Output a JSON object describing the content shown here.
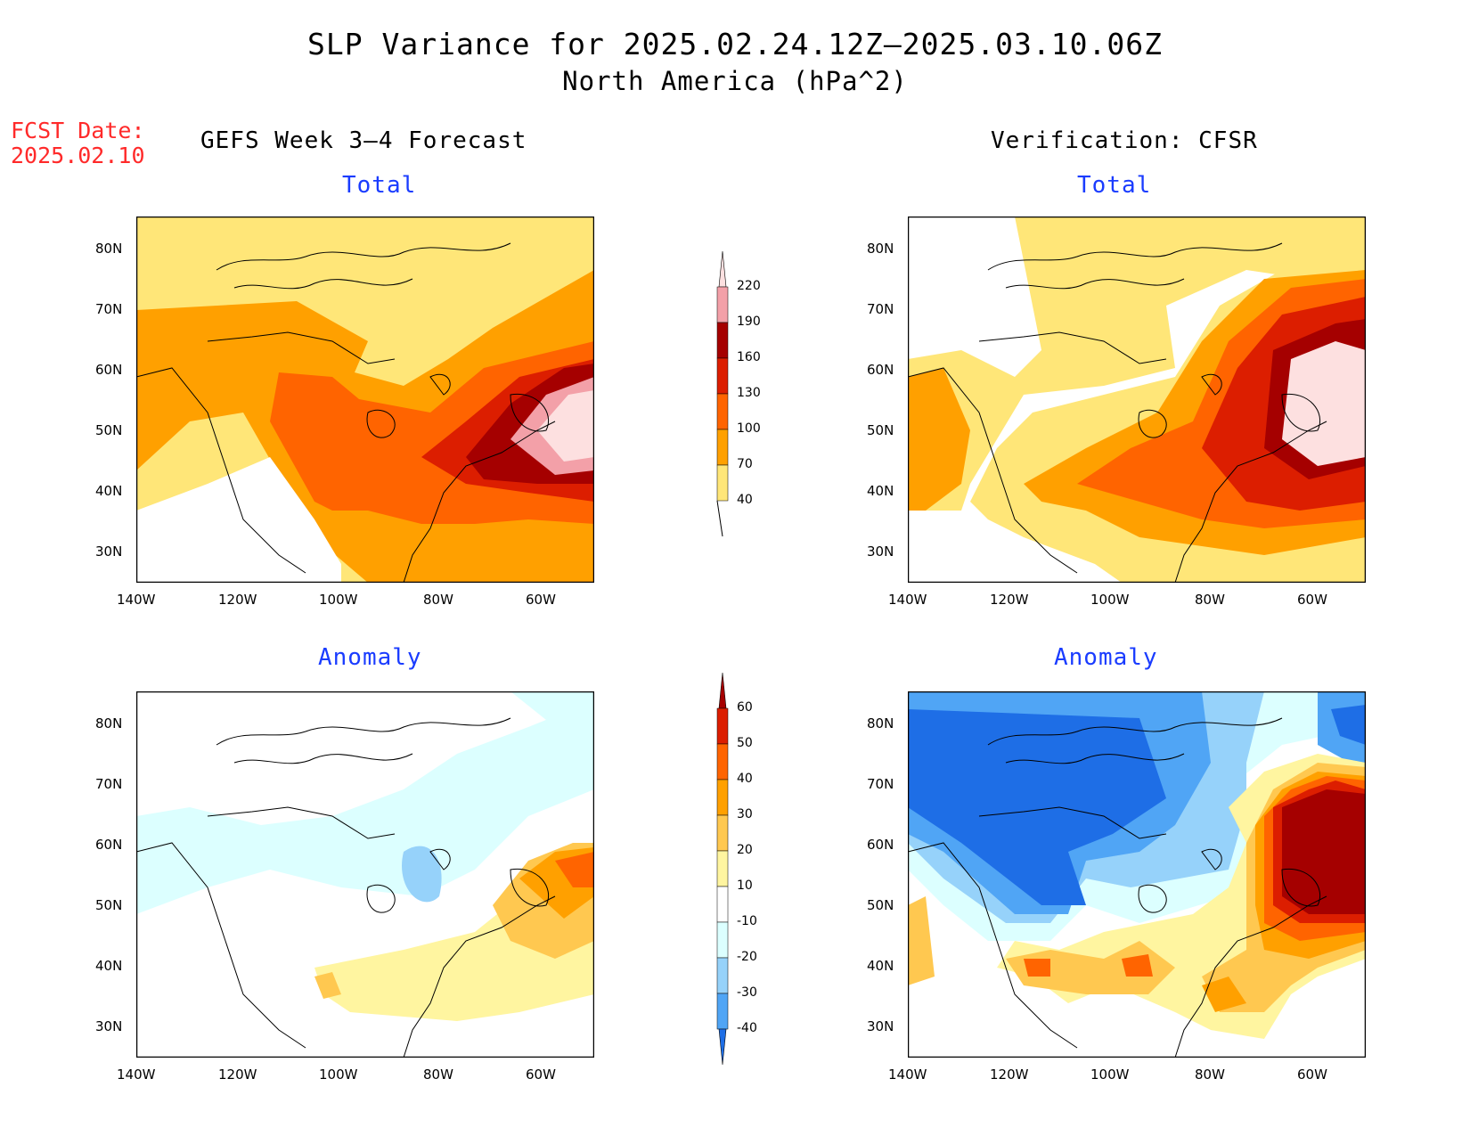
{
  "title": "SLP Variance for 2025.02.24.12Z—2025.03.10.06Z",
  "subtitle": "North America (hPa^2)",
  "fcst_label": "FCST Date:",
  "fcst_date": "2025.02.10",
  "columns": [
    {
      "title": "GEFS Week 3—4 Forecast"
    },
    {
      "title": "Verification: CFSR"
    }
  ],
  "panels": {
    "total_label": "Total",
    "anomaly_label": "Anomaly"
  },
  "axes": {
    "lon_ticks": [
      "140W",
      "120W",
      "100W",
      "80W",
      "60W"
    ],
    "lat_ticks": [
      "80N",
      "70N",
      "60N",
      "50N",
      "40N",
      "30N"
    ]
  },
  "colorbar_total": {
    "levels": [
      "220",
      "190",
      "160",
      "130",
      "100",
      "70",
      "40"
    ],
    "colors": [
      "#fde0e0",
      "#f3a0a8",
      "#a50000",
      "#dc1e00",
      "#ff6400",
      "#ffa000",
      "#ffe678"
    ]
  },
  "colorbar_anomaly": {
    "levels": [
      "60",
      "50",
      "40",
      "30",
      "20",
      "10",
      "-10",
      "-20",
      "-30",
      "-40"
    ],
    "colors": [
      "#a50000",
      "#dc1e00",
      "#ff6400",
      "#ffa000",
      "#ffc850",
      "#fff5a0",
      "#ffffff",
      "#dcffff",
      "#96d2fa",
      "#50a5f5",
      "#1e6ee6"
    ]
  },
  "map": {
    "region": "North America",
    "lon_range": [
      -140,
      -50
    ],
    "lat_range": [
      25,
      85
    ]
  }
}
